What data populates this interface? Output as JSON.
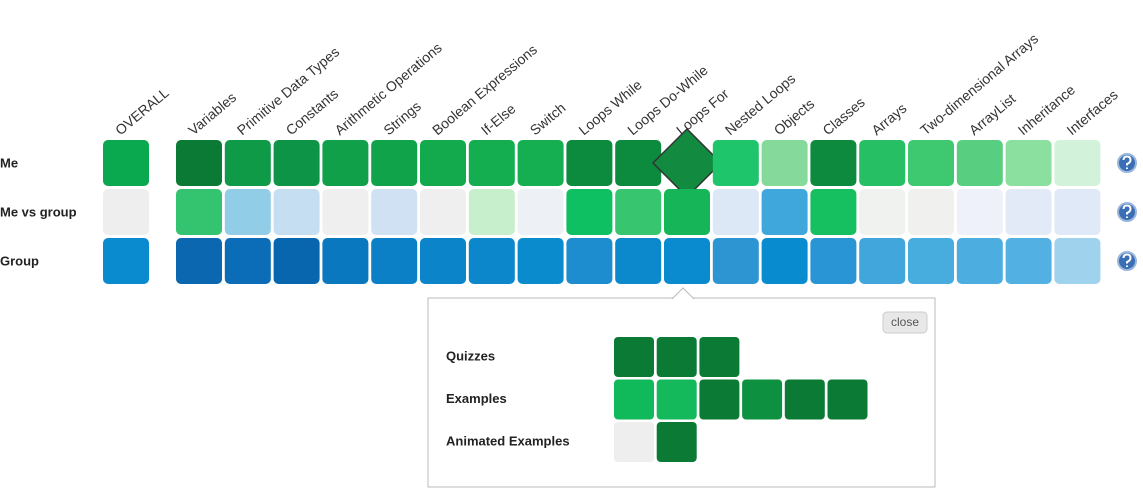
{
  "grid": {
    "columns": [
      "OVERALL",
      "Variables",
      "Primitive Data Types",
      "Constants",
      "Arithmetic Operations",
      "Strings",
      "Boolean Expressions",
      "If-Else",
      "Switch",
      "Loops While",
      "Loops Do-While",
      "Loops For",
      "Nested Loops",
      "Objects",
      "Classes",
      "Arrays",
      "Two-dimensional Arrays",
      "ArrayList",
      "Inheritance",
      "Interfaces"
    ],
    "selected_cell": [
      0,
      11
    ],
    "rows": [
      {
        "label": "Me",
        "colors": [
          "#0aa84f",
          "#0b7a35",
          "#0f9a48",
          "#0e9446",
          "#10a049",
          "#10a34a",
          "#13aa4d",
          "#14ae50",
          "#15ae51",
          "#0c8a3d",
          "#0c8a3d",
          "#128a40",
          "#1fc56a",
          "#85d99a",
          "#0d8a3e",
          "#26bf63",
          "#3ec870",
          "#58cf80",
          "#8be0a0",
          "#d2f3d9"
        ]
      },
      {
        "label": "Me vs group",
        "colors": [
          "#eeeeee",
          "#34c46f",
          "#92cde8",
          "#c5def2",
          "#efefef",
          "#cfe1f3",
          "#efefef",
          "#c7efcb",
          "#edf0f5",
          "#0fc063",
          "#38c56f",
          "#16b658",
          "#dde8f7",
          "#3fa7db",
          "#16c061",
          "#f0f2ef",
          "#f0f0ef",
          "#eef1fa",
          "#e2eaf8",
          "#dfe9f7"
        ]
      },
      {
        "label": "Group",
        "colors": [
          "#0a8bcf",
          "#0a67b0",
          "#0b6db7",
          "#0866af",
          "#0a78bf",
          "#0b80c6",
          "#0c84c9",
          "#0c87cb",
          "#0a8bce",
          "#1d8dcf",
          "#0c89cd",
          "#0a8acf",
          "#2e95d3",
          "#098ccf",
          "#2a95d4",
          "#40a6dc",
          "#47addf",
          "#4caee0",
          "#52b1e2",
          "#9fd2ed"
        ]
      }
    ]
  },
  "popup": {
    "close": "close",
    "rows": [
      {
        "label": "Quizzes",
        "colors": [
          "#0b7a35",
          "#0b7a35",
          "#0b7a35"
        ]
      },
      {
        "label": "Examples",
        "colors": [
          "#10b95a",
          "#13b95a",
          "#0b7a35",
          "#0d9140",
          "#0b7a35",
          "#0b7a35"
        ]
      },
      {
        "label": "Animated Examples",
        "colors": [
          "#eeeeee",
          "#0b7a35"
        ]
      }
    ]
  }
}
